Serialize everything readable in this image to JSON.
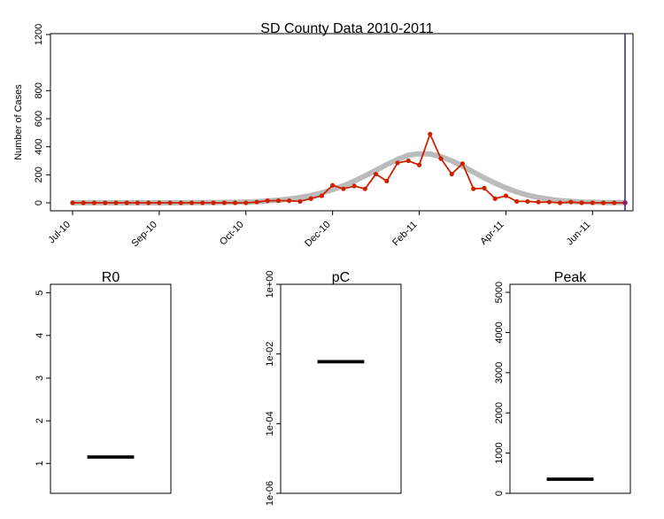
{
  "chart_data": [
    {
      "type": "line",
      "title": "SD County Data 2010-2011",
      "ylabel": "Number of Cases",
      "xlabel": "",
      "ylim": [
        0,
        1200
      ],
      "yticks": [
        0,
        200,
        400,
        600,
        800,
        1200
      ],
      "x_tick_labels": [
        "Jul-10",
        "Sep-10",
        "Oct-10",
        "Dec-10",
        "Feb-11",
        "Apr-11",
        "Jun-11"
      ],
      "x_tick_index": [
        0,
        8,
        16,
        24,
        32,
        40,
        48
      ],
      "grid": false,
      "series": [
        {
          "color": "#cc2200",
          "marker": "circle",
          "values": [
            0,
            0,
            0,
            0,
            0,
            0,
            0,
            0,
            0,
            0,
            0,
            0,
            0,
            0,
            0,
            0,
            0,
            5,
            15,
            15,
            15,
            10,
            30,
            50,
            125,
            100,
            120,
            100,
            205,
            155,
            285,
            300,
            270,
            490,
            315,
            205,
            280,
            100,
            105,
            30,
            50,
            10,
            10,
            5,
            5,
            0,
            5,
            0,
            0,
            0,
            0,
            0
          ]
        },
        {
          "color": "#bbbbbb",
          "style": "fitted-curve",
          "values": [
            0,
            0,
            0,
            0,
            0,
            0,
            0,
            0,
            0,
            0,
            0,
            1,
            1,
            2,
            3,
            4,
            6,
            9,
            13,
            19,
            27,
            38,
            52,
            71,
            94,
            122,
            155,
            192,
            232,
            272,
            310,
            340,
            350,
            348,
            330,
            300,
            262,
            220,
            178,
            140,
            106,
            78,
            55,
            38,
            25,
            16,
            10,
            6,
            4,
            2,
            1,
            1
          ]
        }
      ],
      "vline": {
        "index": 51,
        "color": "#3030a0"
      }
    },
    {
      "type": "boxplot",
      "title": "R0",
      "ylim": [
        0.3,
        5.2
      ],
      "yticks": [
        1,
        2,
        3,
        4,
        5
      ],
      "ytick_labels": [
        "1",
        "2",
        "3",
        "4",
        "5"
      ],
      "scale": "linear",
      "median": 1.15
    },
    {
      "type": "boxplot",
      "title": "pC",
      "ylim": [
        1e-06,
        1
      ],
      "yticks": [
        1e-06,
        0.0001,
        0.01,
        1
      ],
      "ytick_labels": [
        "1e-06",
        "1e-04",
        "1e-02",
        "1e+00"
      ],
      "scale": "log",
      "median": 0.006
    },
    {
      "type": "boxplot",
      "title": "Peak",
      "ylim": [
        0,
        5200
      ],
      "yticks": [
        0,
        1000,
        2000,
        3000,
        4000,
        5000
      ],
      "ytick_labels": [
        "0",
        "1000",
        "2000",
        "3000",
        "4000",
        "5000"
      ],
      "scale": "linear",
      "median": 350
    }
  ]
}
